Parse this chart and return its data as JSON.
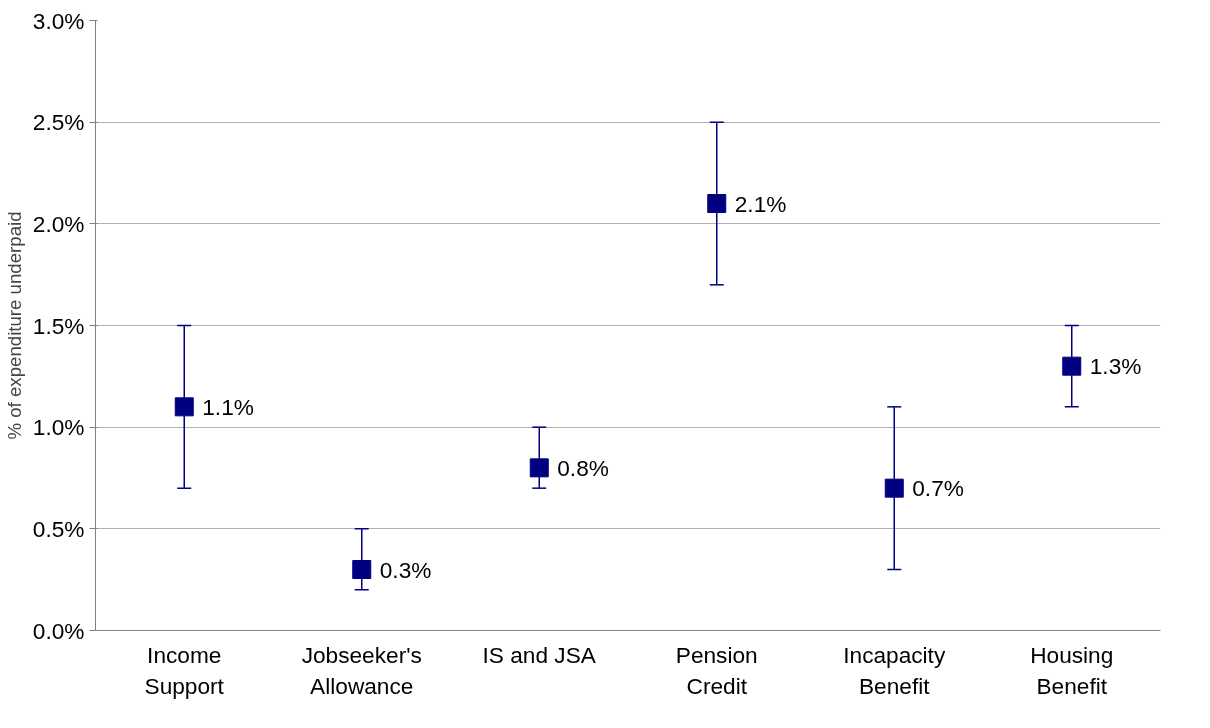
{
  "chart_data": {
    "type": "scatter",
    "ylabel": "% of expenditure underpaid",
    "categories": [
      "Income\nSupport",
      "Jobseeker's\nAllowance",
      "IS and JSA",
      "Pension\nCredit",
      "Incapacity\nBenefit",
      "Housing\nBenefit"
    ],
    "values": [
      1.1,
      0.3,
      0.8,
      2.1,
      0.7,
      1.3
    ],
    "errors": [
      [
        0.7,
        1.5
      ],
      [
        0.2,
        0.5
      ],
      [
        0.7,
        1.0
      ],
      [
        1.7,
        2.5
      ],
      [
        0.3,
        1.1
      ],
      [
        1.1,
        1.5
      ]
    ],
    "value_labels": [
      "1.1%",
      "0.3%",
      "0.8%",
      "2.1%",
      "0.7%",
      "1.3%"
    ],
    "color": "#000080",
    "marker": "square",
    "ylim": [
      0,
      3
    ],
    "yticks": [
      {
        "value": 0,
        "label": "0.0%"
      },
      {
        "value": 0.5,
        "label": "0.5%"
      },
      {
        "value": 1,
        "label": "1.0%"
      },
      {
        "value": 1.5,
        "label": "1.5%"
      },
      {
        "value": 2,
        "label": "2.0%"
      },
      {
        "value": 2.5,
        "label": "2.5%"
      },
      {
        "value": 3,
        "label": "3.0%"
      }
    ],
    "grid": "y"
  }
}
